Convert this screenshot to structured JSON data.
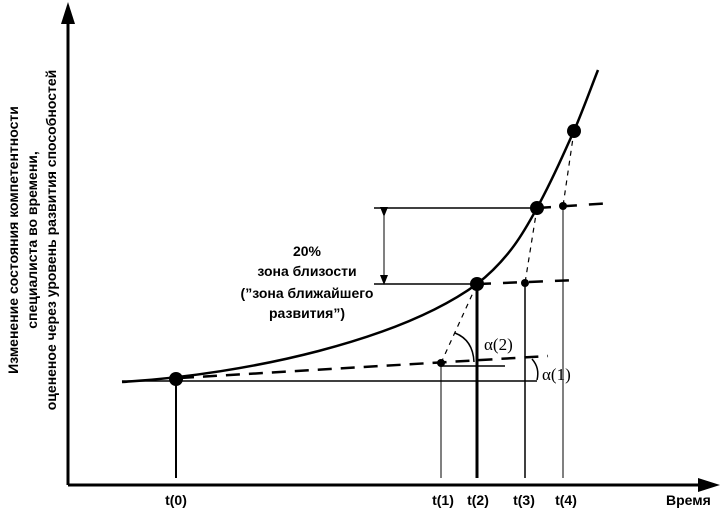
{
  "y_axis_label": [
    "Изменение состояния компетентности",
    "специалиста во времени,",
    "оцененое  через уровень развития способностей"
  ],
  "x_axis_label": "Время",
  "ticks": [
    "t(0)",
    "t(1)",
    "t(2)",
    "t(3)",
    "t(4)"
  ],
  "zone_label": [
    "20%",
    "зона близости",
    "(”зона ближайшего",
    "развития”)"
  ],
  "angles": [
    "α(2)",
    "α(1)"
  ]
}
